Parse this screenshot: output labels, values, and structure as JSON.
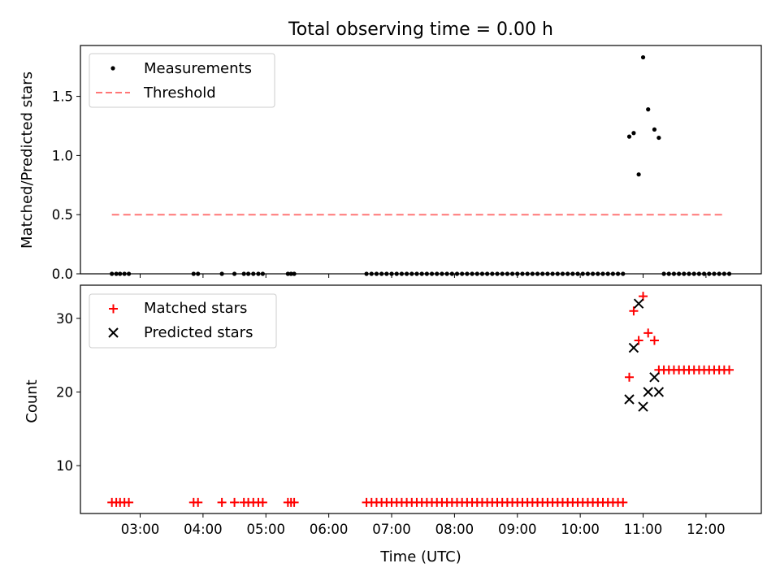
{
  "title": "Total observing time = 0.00 h",
  "colors": {
    "matched": "#ff0000",
    "predicted": "#000000",
    "measurement": "#000000",
    "threshold": "#ff7777"
  },
  "chart_data": [
    {
      "type": "scatter",
      "panel": "top",
      "xlabel": "",
      "ylabel": "Matched/Predicted stars",
      "ylim": [
        0,
        1.93
      ],
      "xlim": [
        2.05,
        12.88
      ],
      "yticks": [
        0.0,
        0.5,
        1.0,
        1.5
      ],
      "ytick_labels": [
        "0.0",
        "0.5",
        "1.0",
        "1.5"
      ],
      "legend_position": "upper-left",
      "series": [
        {
          "name": "Measurements",
          "marker": "dot",
          "x": [
            2.55,
            2.62,
            2.68,
            2.75,
            2.82,
            3.85,
            3.92,
            4.3,
            4.5,
            4.65,
            4.72,
            4.8,
            4.88,
            4.95,
            5.35,
            5.4,
            5.45,
            6.6,
            6.68,
            6.76,
            6.84,
            6.92,
            7.0,
            7.08,
            7.16,
            7.24,
            7.32,
            7.4,
            7.48,
            7.56,
            7.64,
            7.72,
            7.8,
            7.88,
            7.96,
            8.04,
            8.12,
            8.2,
            8.28,
            8.36,
            8.44,
            8.52,
            8.6,
            8.68,
            8.76,
            8.84,
            8.92,
            9.0,
            9.08,
            9.16,
            9.24,
            9.32,
            9.4,
            9.48,
            9.56,
            9.64,
            9.72,
            9.8,
            9.88,
            9.96,
            10.04,
            10.12,
            10.2,
            10.28,
            10.36,
            10.44,
            10.52,
            10.6,
            10.68,
            10.78,
            10.85,
            10.93,
            11.0,
            11.08,
            11.18,
            11.25,
            11.33,
            11.41,
            11.49,
            11.57,
            11.65,
            11.73,
            11.81,
            11.89,
            11.97,
            12.05,
            12.13,
            12.21,
            12.29,
            12.37
          ],
          "y": [
            0,
            0,
            0,
            0,
            0,
            0,
            0,
            0,
            0,
            0,
            0,
            0,
            0,
            0,
            0,
            0,
            0,
            0,
            0,
            0,
            0,
            0,
            0,
            0,
            0,
            0,
            0,
            0,
            0,
            0,
            0,
            0,
            0,
            0,
            0,
            0,
            0,
            0,
            0,
            0,
            0,
            0,
            0,
            0,
            0,
            0,
            0,
            0,
            0,
            0,
            0,
            0,
            0,
            0,
            0,
            0,
            0,
            0,
            0,
            0,
            0,
            0,
            0,
            0,
            0,
            0,
            0,
            0,
            0,
            1.16,
            1.19,
            0.84,
            1.83,
            1.39,
            1.22,
            1.15,
            0,
            0,
            0,
            0,
            0,
            0,
            0,
            0,
            0,
            0,
            0,
            0,
            0,
            0
          ]
        },
        {
          "name": "Threshold",
          "style": "dashed",
          "x": [
            2.55,
            12.3
          ],
          "y": [
            0.5,
            0.5
          ]
        }
      ]
    },
    {
      "type": "scatter",
      "panel": "bottom",
      "xlabel": "Time (UTC)",
      "ylabel": "Count",
      "ylim": [
        3.5,
        34.5
      ],
      "xlim": [
        2.05,
        12.88
      ],
      "yticks": [
        10,
        20,
        30
      ],
      "ytick_labels": [
        "10",
        "20",
        "30"
      ],
      "xticks": [
        3,
        4,
        5,
        6,
        7,
        8,
        9,
        10,
        11,
        12
      ],
      "xtick_labels": [
        "03:00",
        "04:00",
        "05:00",
        "06:00",
        "07:00",
        "08:00",
        "09:00",
        "10:00",
        "11:00",
        "12:00"
      ],
      "legend_position": "upper-left",
      "series": [
        {
          "name": "Matched stars",
          "marker": "plus",
          "x": [
            2.55,
            2.62,
            2.68,
            2.75,
            2.82,
            3.85,
            3.92,
            4.3,
            4.5,
            4.65,
            4.72,
            4.8,
            4.88,
            4.95,
            5.35,
            5.4,
            5.45,
            6.6,
            6.68,
            6.76,
            6.84,
            6.92,
            7.0,
            7.08,
            7.16,
            7.24,
            7.32,
            7.4,
            7.48,
            7.56,
            7.64,
            7.72,
            7.8,
            7.88,
            7.96,
            8.04,
            8.12,
            8.2,
            8.28,
            8.36,
            8.44,
            8.52,
            8.6,
            8.68,
            8.76,
            8.84,
            8.92,
            9.0,
            9.08,
            9.16,
            9.24,
            9.32,
            9.4,
            9.48,
            9.56,
            9.64,
            9.72,
            9.8,
            9.88,
            9.96,
            10.04,
            10.12,
            10.2,
            10.28,
            10.36,
            10.44,
            10.52,
            10.6,
            10.68,
            10.78,
            10.85,
            10.93,
            11.0,
            11.08,
            11.18,
            11.25,
            11.33,
            11.41,
            11.49,
            11.57,
            11.65,
            11.73,
            11.81,
            11.89,
            11.97,
            12.05,
            12.13,
            12.21,
            12.29,
            12.37
          ],
          "y": [
            5,
            5,
            5,
            5,
            5,
            5,
            5,
            5,
            5,
            5,
            5,
            5,
            5,
            5,
            5,
            5,
            5,
            5,
            5,
            5,
            5,
            5,
            5,
            5,
            5,
            5,
            5,
            5,
            5,
            5,
            5,
            5,
            5,
            5,
            5,
            5,
            5,
            5,
            5,
            5,
            5,
            5,
            5,
            5,
            5,
            5,
            5,
            5,
            5,
            5,
            5,
            5,
            5,
            5,
            5,
            5,
            5,
            5,
            5,
            5,
            5,
            5,
            5,
            5,
            5,
            5,
            5,
            5,
            5,
            22,
            31,
            27,
            33,
            28,
            27,
            23,
            23,
            23,
            23,
            23,
            23,
            23,
            23,
            23,
            23,
            23,
            23,
            23,
            23,
            23
          ]
        },
        {
          "name": "Predicted stars",
          "marker": "x",
          "x": [
            10.78,
            10.85,
            10.93,
            11.0,
            11.08,
            11.18,
            11.25
          ],
          "y": [
            19,
            26,
            32,
            18,
            20,
            22,
            20
          ]
        }
      ]
    }
  ]
}
